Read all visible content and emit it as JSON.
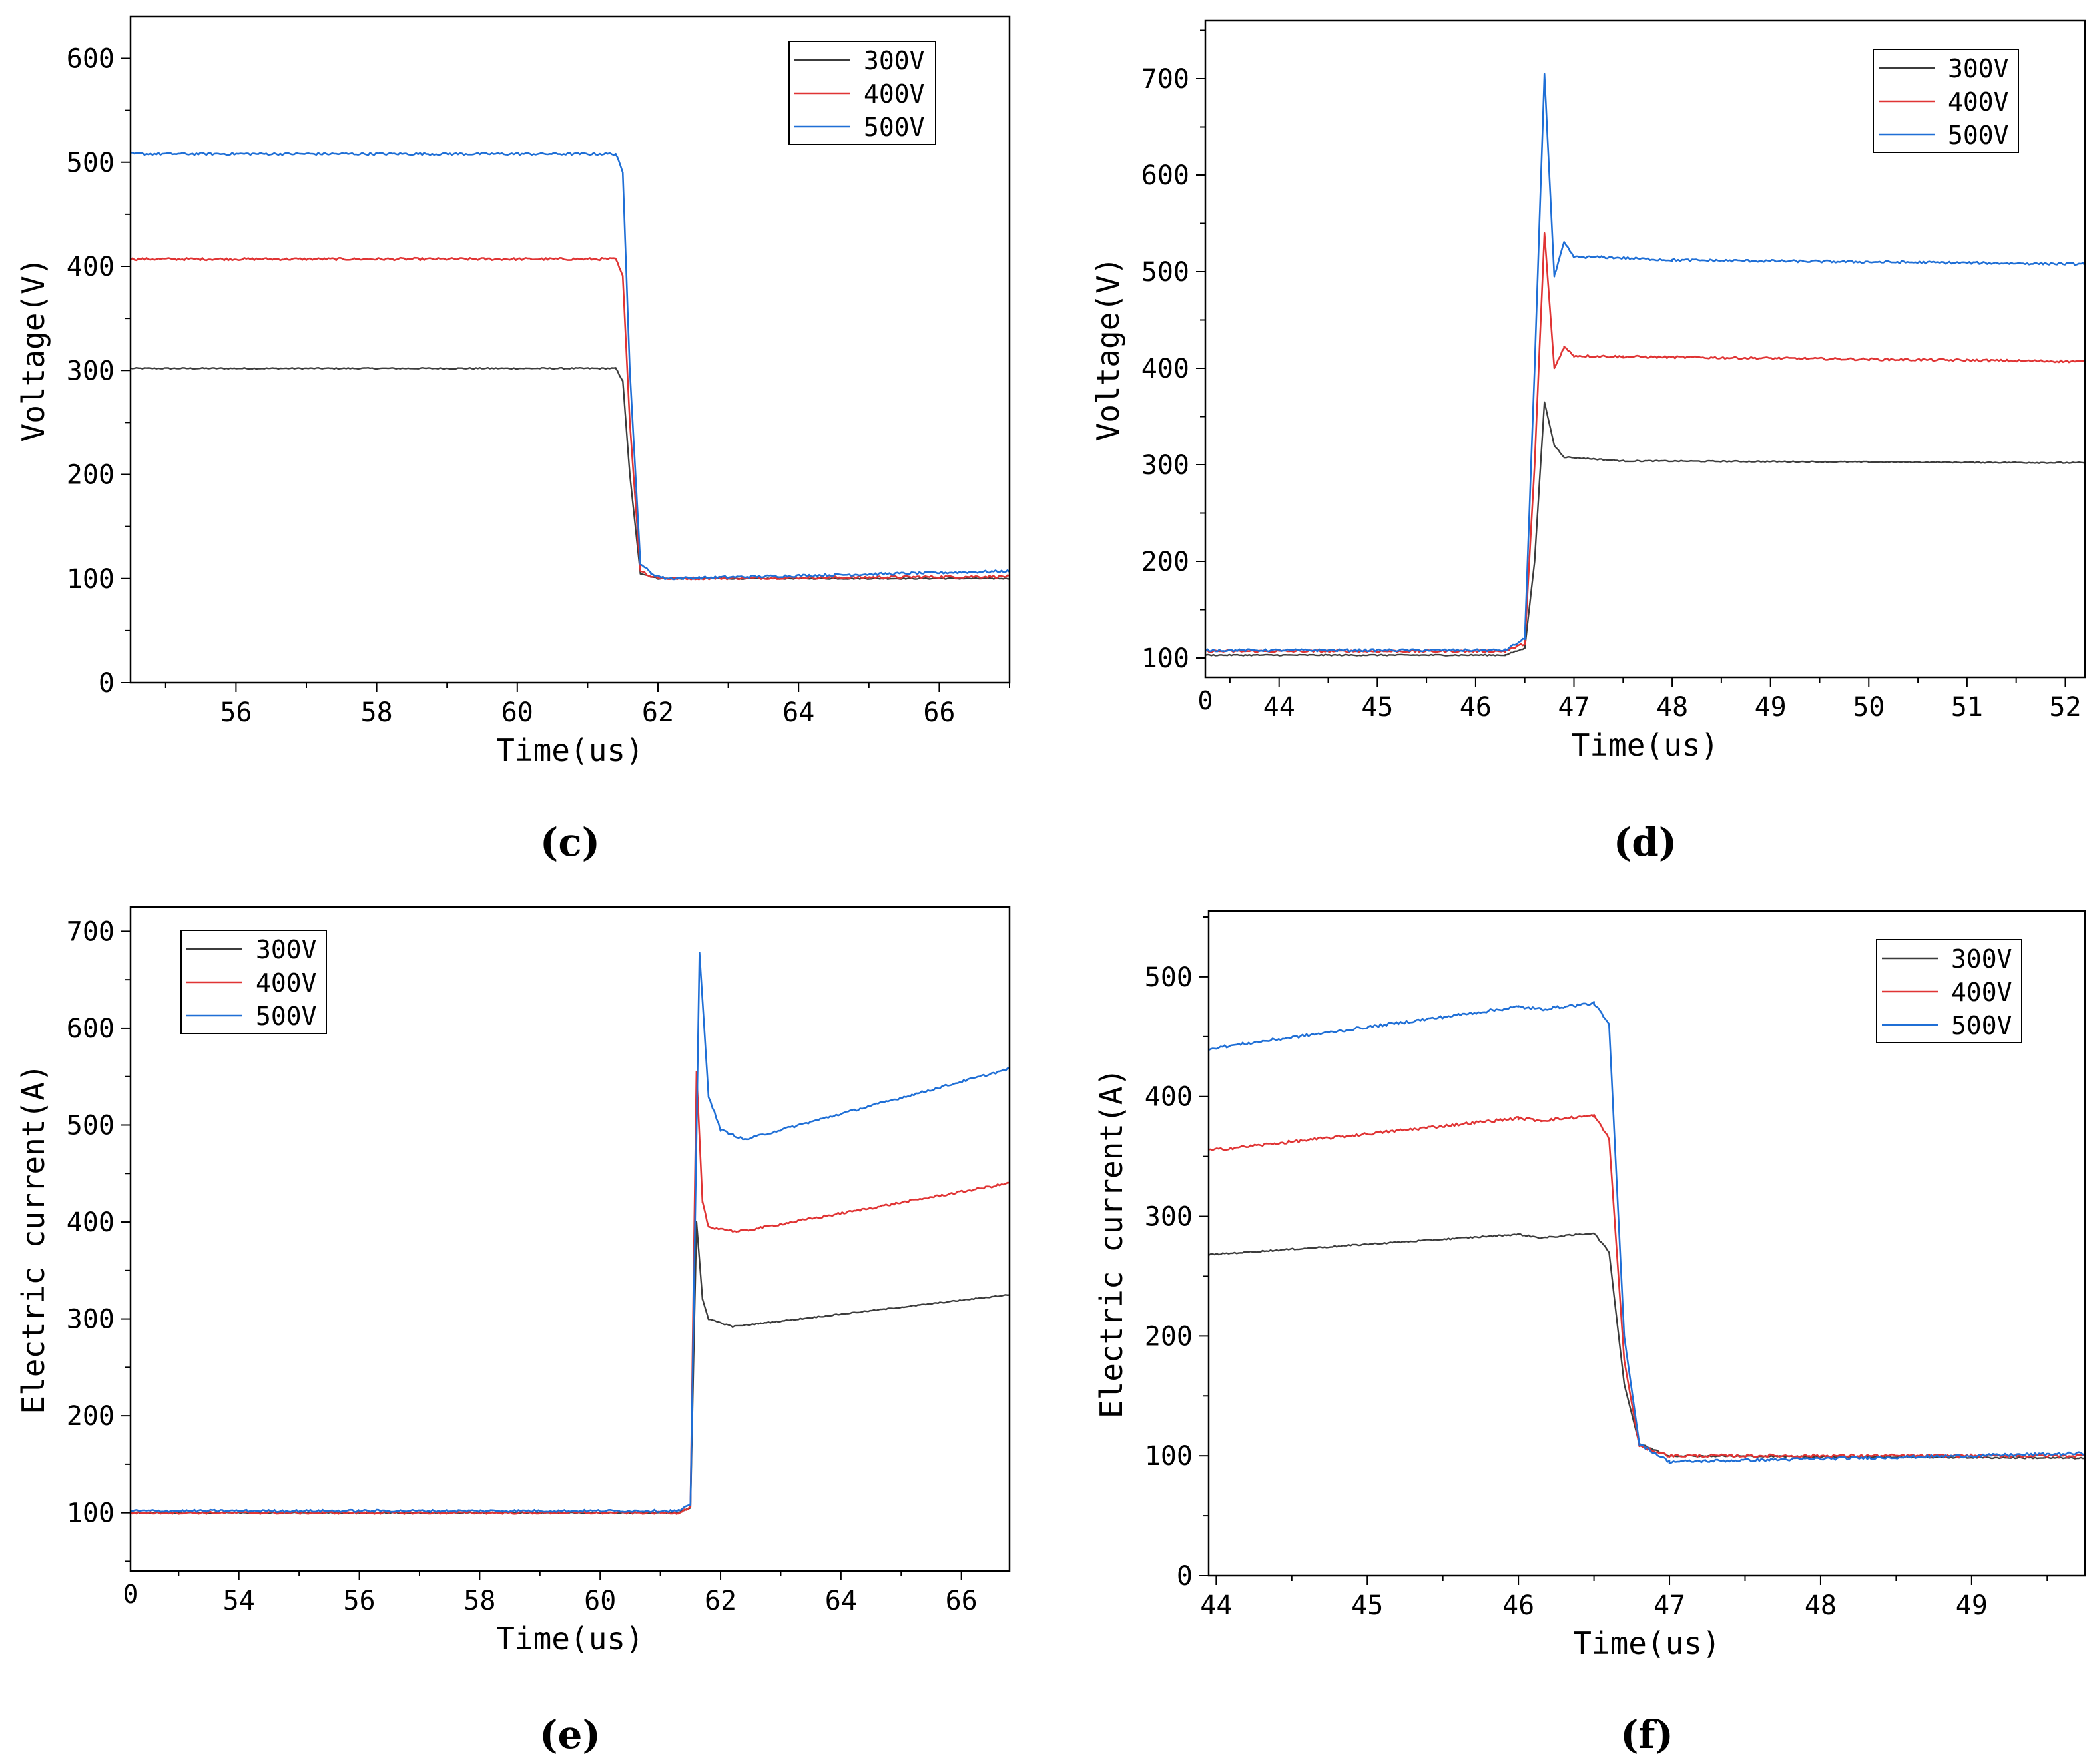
{
  "figure": {
    "colors": {
      "300V": "#3c3c3c",
      "400V": "#e03434",
      "500V": "#1f6fd6"
    }
  },
  "chart_data": [
    {
      "panel": "(c)",
      "type": "line",
      "xlabel": "Time(us)",
      "ylabel": "Voltage(V)",
      "xlim": [
        54.5,
        67
      ],
      "ylim": [
        0,
        640
      ],
      "xticks": [
        56,
        58,
        60,
        62,
        64,
        66
      ],
      "yticks": [
        0,
        100,
        200,
        300,
        400,
        500,
        600
      ],
      "x_origin_label": "",
      "legend": "top-right",
      "grid": false,
      "series": [
        {
          "name": "300V",
          "points": [
            [
              54.5,
              302
            ],
            [
              61.4,
              302
            ],
            [
              61.5,
              290
            ],
            [
              61.6,
              200
            ],
            [
              61.75,
              105
            ],
            [
              62.0,
              100
            ],
            [
              67,
              100
            ]
          ]
        },
        {
          "name": "400V",
          "points": [
            [
              54.5,
              407
            ],
            [
              61.4,
              407
            ],
            [
              61.5,
              390
            ],
            [
              61.6,
              250
            ],
            [
              61.75,
              108
            ],
            [
              61.9,
              102
            ],
            [
              62.1,
              100
            ],
            [
              67,
              102
            ]
          ]
        },
        {
          "name": "500V",
          "points": [
            [
              54.5,
              508
            ],
            [
              61.4,
              508
            ],
            [
              61.5,
              490
            ],
            [
              61.6,
              300
            ],
            [
              61.75,
              115
            ],
            [
              61.9,
              105
            ],
            [
              62.1,
              100
            ],
            [
              67,
              107
            ]
          ]
        }
      ]
    },
    {
      "panel": "(d)",
      "type": "line",
      "xlabel": "Time(us)",
      "ylabel": "Voltage(V)",
      "xlim": [
        43.25,
        52.2
      ],
      "ylim": [
        80,
        760
      ],
      "xticks": [
        44,
        45,
        46,
        47,
        48,
        49,
        50,
        51,
        52
      ],
      "yticks": [
        100,
        200,
        300,
        400,
        500,
        600,
        700
      ],
      "x_origin_label": "0",
      "legend": "top-right",
      "grid": false,
      "series": [
        {
          "name": "300V",
          "points": [
            [
              43.25,
              103
            ],
            [
              46.3,
              103
            ],
            [
              46.5,
              110
            ],
            [
              46.6,
              200
            ],
            [
              46.7,
              365
            ],
            [
              46.8,
              320
            ],
            [
              46.9,
              308
            ],
            [
              47.5,
              304
            ],
            [
              52.2,
              302
            ]
          ]
        },
        {
          "name": "400V",
          "points": [
            [
              43.25,
              107
            ],
            [
              46.3,
              107
            ],
            [
              46.5,
              115
            ],
            [
              46.6,
              300
            ],
            [
              46.7,
              540
            ],
            [
              46.8,
              400
            ],
            [
              46.9,
              422
            ],
            [
              47.0,
              413
            ],
            [
              47.5,
              412
            ],
            [
              52.2,
              407
            ]
          ]
        },
        {
          "name": "500V",
          "points": [
            [
              43.25,
              108
            ],
            [
              46.3,
              108
            ],
            [
              46.5,
              120
            ],
            [
              46.6,
              400
            ],
            [
              46.7,
              705
            ],
            [
              46.8,
              495
            ],
            [
              46.9,
              530
            ],
            [
              47.0,
              515
            ],
            [
              47.3,
              515
            ],
            [
              48.0,
              512
            ],
            [
              52.2,
              508
            ]
          ]
        }
      ]
    },
    {
      "panel": "(e)",
      "type": "line",
      "xlabel": "Time(us)",
      "ylabel": "Electric current(A)",
      "xlim": [
        52.2,
        66.8
      ],
      "ylim": [
        40,
        725
      ],
      "xticks": [
        54,
        56,
        58,
        60,
        62,
        64,
        66
      ],
      "yticks": [
        100,
        200,
        300,
        400,
        500,
        600,
        700
      ],
      "x_origin_label": "0",
      "legend": "top-left",
      "grid": false,
      "series": [
        {
          "name": "300V",
          "points": [
            [
              52.2,
              100
            ],
            [
              61.3,
              100
            ],
            [
              61.5,
              105
            ],
            [
              61.6,
              400
            ],
            [
              61.7,
              320
            ],
            [
              61.8,
              300
            ],
            [
              62.2,
              292
            ],
            [
              66.8,
              325
            ]
          ]
        },
        {
          "name": "400V",
          "points": [
            [
              52.2,
              100
            ],
            [
              61.3,
              100
            ],
            [
              61.5,
              106
            ],
            [
              61.6,
              555
            ],
            [
              61.7,
              420
            ],
            [
              61.8,
              395
            ],
            [
              62.3,
              390
            ],
            [
              66.8,
              440
            ]
          ]
        },
        {
          "name": "500V",
          "points": [
            [
              52.2,
              102
            ],
            [
              61.3,
              102
            ],
            [
              61.5,
              108
            ],
            [
              61.65,
              678
            ],
            [
              61.8,
              530
            ],
            [
              62.0,
              495
            ],
            [
              62.4,
              485
            ],
            [
              66.8,
              558
            ]
          ]
        }
      ]
    },
    {
      "panel": "(f)",
      "type": "line",
      "xlabel": "Time(us)",
      "ylabel": "Electric current(A)",
      "xlim": [
        43.95,
        49.75
      ],
      "ylim": [
        0,
        555
      ],
      "xticks": [
        44,
        45,
        46,
        47,
        48,
        49
      ],
      "yticks": [
        0,
        100,
        200,
        300,
        400,
        500
      ],
      "x_origin_label": "",
      "legend": "top-right",
      "grid": false,
      "series": [
        {
          "name": "300V",
          "points": [
            [
              43.95,
              268
            ],
            [
              46.0,
              285
            ],
            [
              46.15,
              282
            ],
            [
              46.5,
              286
            ],
            [
              46.6,
              270
            ],
            [
              46.7,
              160
            ],
            [
              46.8,
              110
            ],
            [
              47.0,
              100
            ],
            [
              49.75,
              98
            ]
          ]
        },
        {
          "name": "400V",
          "points": [
            [
              43.95,
              355
            ],
            [
              46.0,
              382
            ],
            [
              46.15,
              380
            ],
            [
              46.5,
              384
            ],
            [
              46.6,
              365
            ],
            [
              46.7,
              180
            ],
            [
              46.8,
              108
            ],
            [
              47.0,
              100
            ],
            [
              49.75,
              100
            ]
          ]
        },
        {
          "name": "500V",
          "points": [
            [
              43.95,
              440
            ],
            [
              46.0,
              475
            ],
            [
              46.15,
              473
            ],
            [
              46.5,
              478
            ],
            [
              46.6,
              460
            ],
            [
              46.7,
              200
            ],
            [
              46.8,
              110
            ],
            [
              47.0,
              95
            ],
            [
              49.75,
              102
            ]
          ]
        }
      ]
    }
  ]
}
